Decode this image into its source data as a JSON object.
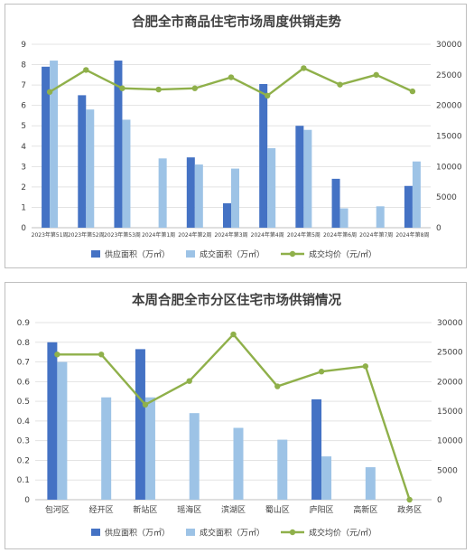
{
  "chart_data": [
    {
      "type": "bar",
      "title": "合肥全市商品住宅市场周度供销走势",
      "categories": [
        "2023年第51周",
        "2023年第52周",
        "2023年第53周",
        "2024年第1周",
        "2024年第2周",
        "2024年第3周",
        "2024年第4周",
        "2024年第5周",
        "2024年第6周",
        "2024年第7周",
        "2024年第8周"
      ],
      "series": [
        {
          "name": "供应面积（万㎡）",
          "type": "bar",
          "axis": "left",
          "color": "#4472c4",
          "values": [
            7.9,
            6.5,
            8.2,
            null,
            3.45,
            1.2,
            7.05,
            5.0,
            2.4,
            null,
            2.05
          ]
        },
        {
          "name": "成交面积（万㎡）",
          "type": "bar",
          "axis": "left",
          "color": "#9dc3e6",
          "values": [
            8.2,
            5.8,
            5.3,
            3.4,
            3.1,
            2.9,
            3.9,
            4.8,
            0.95,
            1.05,
            3.25
          ]
        },
        {
          "name": "成交均价（元/㎡）",
          "type": "line",
          "axis": "right",
          "color": "#8fb04a",
          "values": [
            22200,
            25800,
            22800,
            22600,
            22800,
            24600,
            21600,
            26100,
            23400,
            25000,
            22300
          ]
        }
      ],
      "ylim": [
        0,
        9
      ],
      "y2lim": [
        0,
        30000
      ],
      "yticks": [
        "0",
        "1",
        "2",
        "3",
        "4",
        "5",
        "6",
        "7",
        "8",
        "9"
      ],
      "y2ticks": [
        "0",
        "5000",
        "10000",
        "15000",
        "20000",
        "25000",
        "30000"
      ],
      "legend_position": "bottom",
      "grid": true
    },
    {
      "type": "bar",
      "title": "本周合肥全市分区住宅市场供销情况",
      "categories": [
        "包河区",
        "经开区",
        "新站区",
        "瑶海区",
        "滨湖区",
        "蜀山区",
        "庐阳区",
        "高新区",
        "政务区"
      ],
      "series": [
        {
          "name": "供应面积（万㎡）",
          "type": "bar",
          "axis": "left",
          "color": "#4472c4",
          "values": [
            0.8,
            null,
            0.765,
            null,
            null,
            null,
            0.51,
            null,
            null
          ]
        },
        {
          "name": "成交面积（万㎡）",
          "type": "bar",
          "axis": "left",
          "color": "#9dc3e6",
          "values": [
            0.7,
            0.52,
            0.52,
            0.44,
            0.365,
            0.305,
            0.22,
            0.165,
            null
          ]
        },
        {
          "name": "成交均价（元/㎡）",
          "type": "line",
          "axis": "right",
          "color": "#8fb04a",
          "values": [
            24600,
            24600,
            16100,
            20100,
            28000,
            19200,
            21700,
            22600,
            0
          ]
        }
      ],
      "ylim": [
        0,
        0.9
      ],
      "y2lim": [
        0,
        30000
      ],
      "yticks": [
        "0",
        "0.1",
        "0.2",
        "0.3",
        "0.4",
        "0.5",
        "0.6",
        "0.7",
        "0.8",
        "0.9"
      ],
      "y2ticks": [
        "0",
        "5000",
        "10000",
        "15000",
        "20000",
        "25000",
        "30000"
      ],
      "legend_position": "bottom",
      "grid": true
    }
  ]
}
